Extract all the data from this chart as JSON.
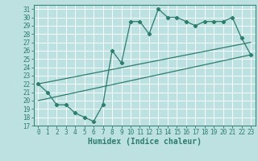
{
  "xlabel": "Humidex (Indice chaleur)",
  "xlim": [
    -0.5,
    23.5
  ],
  "ylim": [
    17,
    31.5
  ],
  "yticks": [
    17,
    18,
    19,
    20,
    21,
    22,
    23,
    24,
    25,
    26,
    27,
    28,
    29,
    30,
    31
  ],
  "xticks": [
    0,
    1,
    2,
    3,
    4,
    5,
    6,
    7,
    8,
    9,
    10,
    11,
    12,
    13,
    14,
    15,
    16,
    17,
    18,
    19,
    20,
    21,
    22,
    23
  ],
  "main_x": [
    0,
    1,
    2,
    3,
    4,
    5,
    6,
    7,
    8,
    9,
    10,
    11,
    12,
    13,
    14,
    15,
    16,
    17,
    18,
    19,
    20,
    21,
    22,
    23
  ],
  "main_y": [
    22,
    21,
    19.5,
    19.5,
    18.5,
    18,
    17.5,
    19.5,
    26,
    24.5,
    29.5,
    29.5,
    28,
    31,
    30,
    30,
    29.5,
    29,
    29.5,
    29.5,
    29.5,
    30,
    27.5,
    25.5
  ],
  "trend1_x": [
    0,
    23
  ],
  "trend1_y": [
    22,
    27
  ],
  "trend2_x": [
    0,
    23
  ],
  "trend2_y": [
    20,
    25.5
  ],
  "line_color": "#2d7d6d",
  "bg_color": "#bde0e0",
  "grid_color": "#d0eaea"
}
